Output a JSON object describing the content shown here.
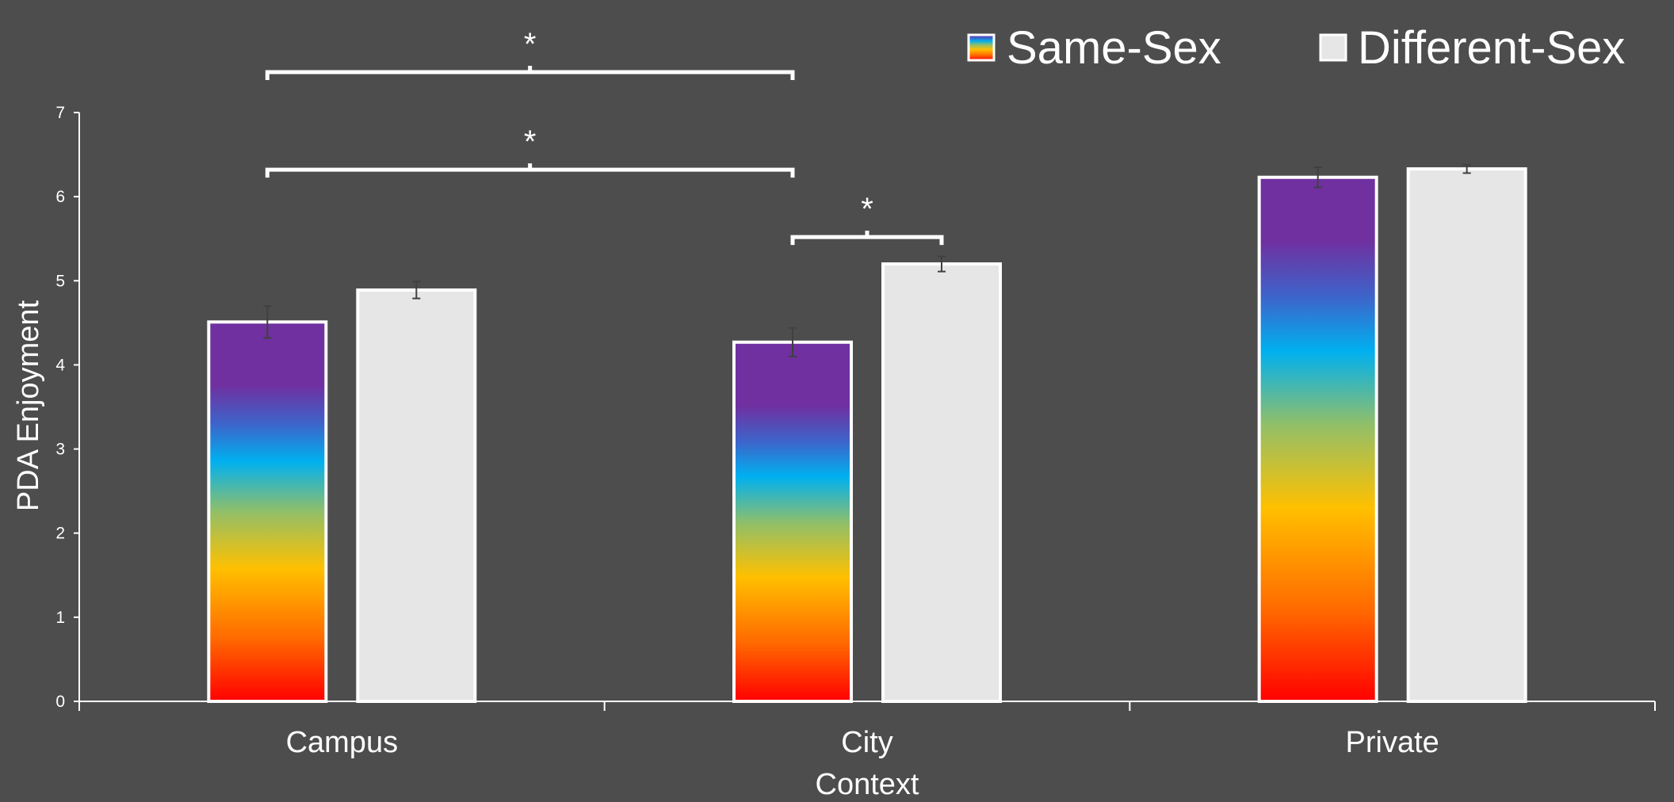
{
  "chart_data": {
    "type": "bar",
    "title": "",
    "xlabel": "Context",
    "ylabel": "PDA Enjoyment",
    "ylim": [
      0,
      7
    ],
    "yticks": [
      0,
      1,
      2,
      3,
      4,
      5,
      6,
      7
    ],
    "categories": [
      "Campus",
      "City",
      "Private"
    ],
    "series": [
      {
        "name": "Same-Sex",
        "fill": "rainbow-gradient",
        "values": [
          4.51,
          4.27,
          6.23
        ],
        "errors": [
          0.19,
          0.17,
          0.12
        ]
      },
      {
        "name": "Different-Sex",
        "fill": "#e6e6e6",
        "values": [
          4.89,
          5.2,
          6.33
        ],
        "errors": [
          0.1,
          0.09,
          0.05
        ]
      }
    ],
    "legend": {
      "placement": "top-right"
    },
    "grid": false,
    "annotations": [
      {
        "label": "*",
        "from": {
          "category": 0,
          "series": 0
        },
        "to": {
          "category": 1,
          "series": 0
        },
        "level": 6.32
      },
      {
        "label": "*",
        "from": {
          "category": 1,
          "series": 0
        },
        "to": {
          "category": 1,
          "series": 1
        },
        "level": 5.52
      },
      {
        "label": "*",
        "from": {
          "category": 0,
          "series": 0
        },
        "to": {
          "category": 1,
          "series": 0
        },
        "level": 7.48
      }
    ]
  },
  "colors": {
    "background": "#4d4d4d",
    "axis": "#ffffff",
    "bar_outline": "#ffffff",
    "different_sex": "#e6e6e6",
    "error_bar": "#404040",
    "rainbow": [
      "#ff0000",
      "#ff6a00",
      "#ffc000",
      "#92bf68",
      "#00b0f0",
      "#3e63c9",
      "#7030a0"
    ]
  }
}
